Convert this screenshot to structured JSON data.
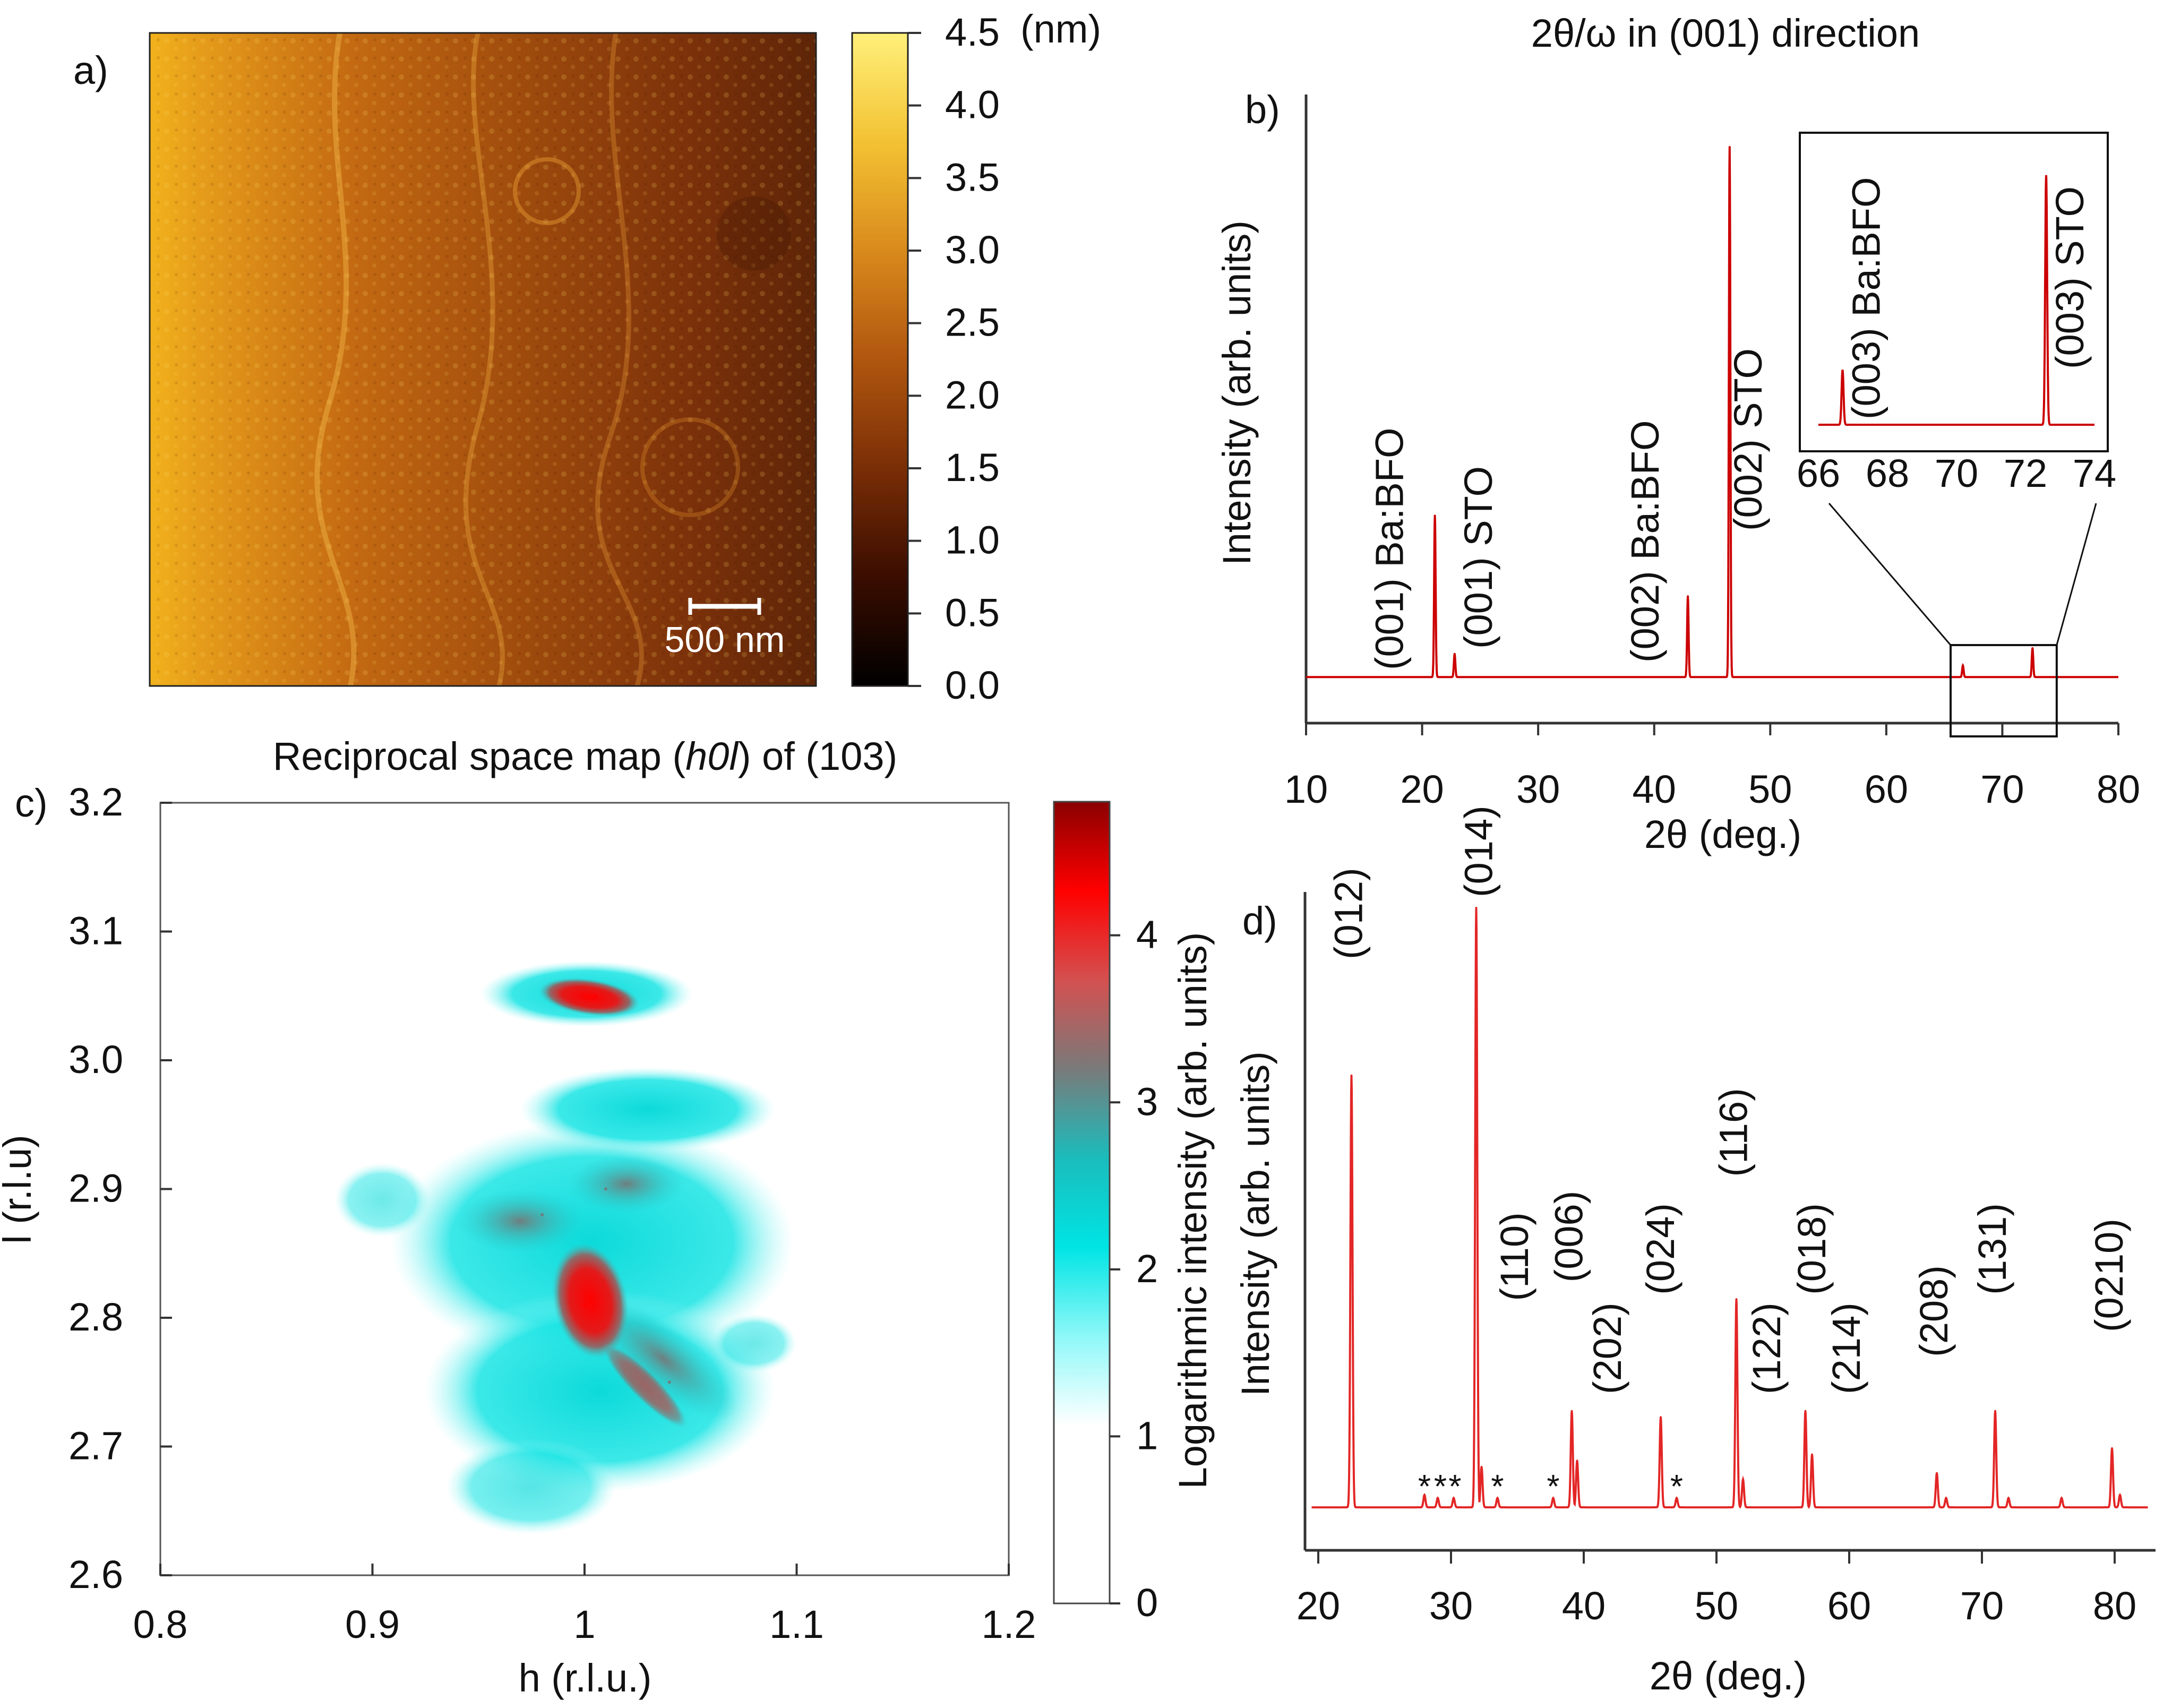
{
  "chart_data": [
    {
      "id": "a",
      "type": "heatmap",
      "panel_label": "a)",
      "title": "",
      "description_kind": "AFM topography",
      "colorbar": {
        "unit": "(nm)",
        "range": [
          0.0,
          4.5
        ],
        "ticks": [
          "4.5",
          "4.0",
          "3.5",
          "3.0",
          "2.5",
          "2.0",
          "1.5",
          "1.0",
          "0.5",
          "0.0"
        ],
        "colors": [
          "#000000",
          "#3a0d00",
          "#7a2e06",
          "#b0560f",
          "#d98a1c",
          "#f3c233",
          "#fff07a"
        ]
      },
      "scalebar_label": "500 nm"
    },
    {
      "id": "b",
      "type": "line",
      "panel_label": "b)",
      "title": "2θ/ω in (001) direction",
      "xlabel": "2θ (deg.)",
      "ylabel": "Intensity  (arb. units)",
      "xlim": [
        10,
        80
      ],
      "xticks": [
        10,
        20,
        30,
        40,
        50,
        60,
        70,
        80
      ],
      "ylim": [
        0,
        1
      ],
      "color": "#cc0000",
      "baseline": 0.08,
      "peaks": [
        {
          "x": 21.1,
          "y": 0.36
        },
        {
          "x": 22.8,
          "y": 0.12
        },
        {
          "x": 42.9,
          "y": 0.22
        },
        {
          "x": 46.5,
          "y": 1.0
        },
        {
          "x": 66.6,
          "y": 0.1
        },
        {
          "x": 72.6,
          "y": 0.13
        }
      ],
      "annotations": [
        {
          "text": "(001) Ba:BFO",
          "x": 21.1
        },
        {
          "text": "(001) STO",
          "x": 22.8
        },
        {
          "text": "(002) Ba:BFO",
          "x": 42.9
        },
        {
          "text": "(002) STO",
          "x": 46.5
        }
      ],
      "zoom_box_x": [
        66,
        74
      ],
      "inset": {
        "xlim": [
          66,
          74
        ],
        "xticks": [
          66,
          68,
          70,
          72,
          74
        ],
        "peaks": [
          {
            "x": 66.7,
            "y": 0.22
          },
          {
            "x": 72.6,
            "y": 1.0
          }
        ],
        "annotations": [
          {
            "text": "(003) Ba:BFO",
            "x": 66.7
          },
          {
            "text": "(003) STO",
            "x": 72.6
          }
        ]
      }
    },
    {
      "id": "c",
      "type": "heatmap",
      "panel_label": "c)",
      "title": "Reciprocal space map (h0l) of (103)",
      "title_parts": [
        "Reciprocal space map (",
        "h0l",
        ") of (103)"
      ],
      "xlabel": "h (r.l.u.)",
      "ylabel": "l (r.l.u)",
      "xlim": [
        0.8,
        1.2
      ],
      "ylim": [
        2.6,
        3.2
      ],
      "xticks": [
        "0.8",
        "0.9",
        "1",
        "1.1",
        "1.2"
      ],
      "yticks": [
        "2.6",
        "2.7",
        "2.8",
        "2.9",
        "3.0",
        "3.1",
        "3.2"
      ],
      "colorbar": {
        "label": "Logarithmic intensity (arb. units)",
        "range": [
          0,
          4.8
        ],
        "ticks": [
          "0",
          "1",
          "2",
          "3",
          "4"
        ],
        "colors": [
          "#ffffff",
          "#ffffff",
          "#ffffff",
          "#8ef8f8",
          "#00e4e4",
          "#1bbcbc",
          "#7a7a7a",
          "#d45050",
          "#ff0000",
          "#8a0000"
        ]
      },
      "spots": [
        {
          "h": 1.005,
          "l": 3.05,
          "level": 4.6
        },
        {
          "h": 1.0,
          "l": 2.81,
          "level": 4.5
        },
        {
          "h": 1.04,
          "l": 2.75,
          "level": 3.8
        },
        {
          "h": 0.98,
          "l": 2.88,
          "level": 3.7
        },
        {
          "h": 1.01,
          "l": 2.9,
          "level": 3.7
        }
      ]
    },
    {
      "id": "d",
      "type": "line",
      "panel_label": "d)",
      "title": "",
      "xlabel": "2θ (deg.)",
      "ylabel": "Intensity  (arb. units)",
      "xlim": [
        19,
        83
      ],
      "xticks": [
        20,
        30,
        40,
        50,
        60,
        70,
        80
      ],
      "ylim": [
        0,
        1
      ],
      "color": "#e32626",
      "baseline": 0.035,
      "peaks": [
        {
          "x": 22.5,
          "y": 0.73
        },
        {
          "x": 28.0,
          "y": 0.055
        },
        {
          "x": 29.0,
          "y": 0.05
        },
        {
          "x": 30.2,
          "y": 0.05
        },
        {
          "x": 31.9,
          "y": 1.0
        },
        {
          "x": 32.3,
          "y": 0.1
        },
        {
          "x": 33.5,
          "y": 0.05
        },
        {
          "x": 37.7,
          "y": 0.05
        },
        {
          "x": 39.1,
          "y": 0.19
        },
        {
          "x": 39.5,
          "y": 0.11
        },
        {
          "x": 45.8,
          "y": 0.18
        },
        {
          "x": 47.0,
          "y": 0.05
        },
        {
          "x": 51.5,
          "y": 0.37
        },
        {
          "x": 52.0,
          "y": 0.08
        },
        {
          "x": 56.7,
          "y": 0.19
        },
        {
          "x": 57.2,
          "y": 0.12
        },
        {
          "x": 66.6,
          "y": 0.09
        },
        {
          "x": 67.3,
          "y": 0.05
        },
        {
          "x": 71.0,
          "y": 0.19
        },
        {
          "x": 72.0,
          "y": 0.05
        },
        {
          "x": 76.0,
          "y": 0.05
        },
        {
          "x": 79.8,
          "y": 0.13
        },
        {
          "x": 80.4,
          "y": 0.055
        }
      ],
      "annotations": [
        {
          "text": "(012)",
          "x": 22.5,
          "y": 0.9
        },
        {
          "text": "(014)",
          "x": 32.3,
          "y": 1.0
        },
        {
          "text": "(110)",
          "x": 35.0,
          "y": 0.35
        },
        {
          "text": "(006)",
          "x": 39.1,
          "y": 0.38
        },
        {
          "text": "(202)",
          "x": 42.0,
          "y": 0.2
        },
        {
          "text": "(024)",
          "x": 46.0,
          "y": 0.36
        },
        {
          "text": "(116)",
          "x": 51.5,
          "y": 0.55
        },
        {
          "text": "(122)",
          "x": 54.0,
          "y": 0.2
        },
        {
          "text": "(018)",
          "x": 57.4,
          "y": 0.36
        },
        {
          "text": "(214)",
          "x": 60.0,
          "y": 0.2
        },
        {
          "text": "(208)",
          "x": 66.6,
          "y": 0.26
        },
        {
          "text": "(131)",
          "x": 71.0,
          "y": 0.36
        },
        {
          "text": "(0210)",
          "x": 79.8,
          "y": 0.3
        }
      ],
      "markers": [
        {
          "text": "*",
          "x": 28.0
        },
        {
          "text": "*",
          "x": 29.2
        },
        {
          "text": "*",
          "x": 30.3
        },
        {
          "text": "*",
          "x": 33.5
        },
        {
          "text": "*",
          "x": 37.7
        },
        {
          "text": "*",
          "x": 47.0
        }
      ]
    }
  ]
}
